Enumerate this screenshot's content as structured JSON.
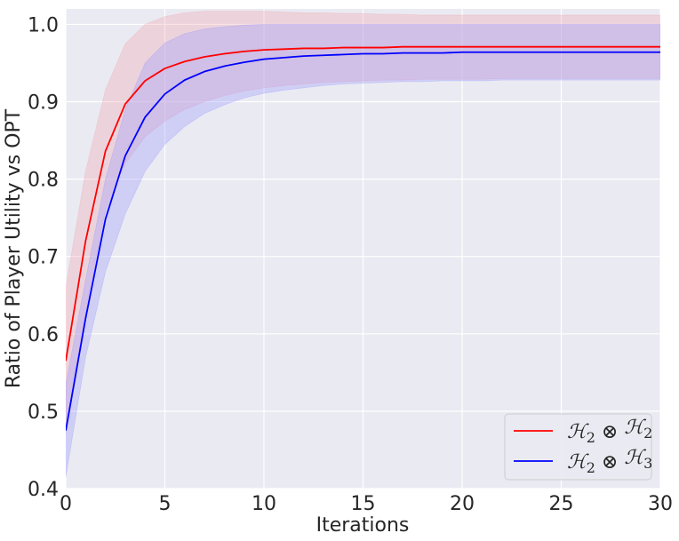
{
  "chart_data": {
    "type": "line",
    "title": "",
    "xlabel": "Iterations",
    "ylabel": "Ratio of Player Utility vs OPT",
    "xlim": [
      0,
      30
    ],
    "ylim": [
      0.4,
      1.02
    ],
    "xticks": [
      0,
      5,
      10,
      15,
      20,
      25,
      30
    ],
    "yticks": [
      0.4,
      0.5,
      0.6,
      0.7,
      0.8,
      0.9,
      1.0
    ],
    "xtick_labels": [
      "0",
      "5",
      "10",
      "15",
      "20",
      "25",
      "30"
    ],
    "ytick_labels": [
      "0.4",
      "0.5",
      "0.6",
      "0.7",
      "0.8",
      "0.9",
      "1.0"
    ],
    "grid": true,
    "background": "#EAEAF2",
    "legend_position": "bottom-right",
    "x": [
      0,
      1,
      2,
      3,
      4,
      5,
      6,
      7,
      8,
      9,
      10,
      11,
      12,
      13,
      14,
      15,
      16,
      17,
      18,
      19,
      20,
      21,
      22,
      23,
      24,
      25,
      26,
      27,
      28,
      29,
      30
    ],
    "series": [
      {
        "legend": {
          "main": "ℋ",
          "sub": "2",
          "op": " ⊗ ",
          "main2": "ℋ",
          "sub2": "2"
        },
        "color": "#FF0000",
        "band_color": "rgba(240,150,160,0.28)",
        "values": [
          0.565,
          0.72,
          0.836,
          0.897,
          0.927,
          0.943,
          0.952,
          0.958,
          0.962,
          0.965,
          0.967,
          0.968,
          0.969,
          0.969,
          0.97,
          0.97,
          0.97,
          0.971,
          0.971,
          0.971,
          0.971,
          0.971,
          0.971,
          0.971,
          0.971,
          0.971,
          0.971,
          0.971,
          0.971,
          0.971,
          0.971
        ],
        "upper": [
          0.66,
          0.81,
          0.915,
          0.975,
          1.0,
          1.01,
          1.015,
          1.017,
          1.017,
          1.017,
          1.017,
          1.016,
          1.015,
          1.015,
          1.014,
          1.014,
          1.013,
          1.013,
          1.012,
          1.012,
          1.012,
          1.012,
          1.012,
          1.012,
          1.012,
          1.012,
          1.012,
          1.012,
          1.012,
          1.012,
          1.012
        ],
        "lower": [
          0.47,
          0.63,
          0.76,
          0.82,
          0.855,
          0.875,
          0.89,
          0.9,
          0.908,
          0.914,
          0.918,
          0.921,
          0.923,
          0.925,
          0.926,
          0.927,
          0.928,
          0.928,
          0.929,
          0.929,
          0.929,
          0.929,
          0.93,
          0.93,
          0.93,
          0.93,
          0.93,
          0.93,
          0.93,
          0.93,
          0.93
        ]
      },
      {
        "legend": {
          "main": "ℋ",
          "sub": "2",
          "op": " ⊗ ",
          "main2": "ℋ",
          "sub2": "3"
        },
        "color": "#0000FF",
        "band_color": "rgba(150,150,255,0.32)",
        "values": [
          0.475,
          0.62,
          0.748,
          0.83,
          0.88,
          0.91,
          0.928,
          0.939,
          0.946,
          0.951,
          0.955,
          0.957,
          0.959,
          0.96,
          0.961,
          0.962,
          0.962,
          0.963,
          0.963,
          0.963,
          0.964,
          0.964,
          0.964,
          0.964,
          0.964,
          0.964,
          0.964,
          0.964,
          0.964,
          0.964,
          0.964
        ],
        "upper": [
          0.535,
          0.67,
          0.8,
          0.89,
          0.95,
          0.976,
          0.988,
          0.994,
          0.997,
          0.999,
          1.0,
          1.0,
          1.0,
          1.0,
          1.0,
          1.0,
          1.0,
          1.0,
          1.0,
          1.0,
          1.0,
          1.0,
          1.0,
          1.0,
          1.0,
          1.0,
          1.0,
          1.0,
          1.0,
          1.0,
          1.0
        ],
        "lower": [
          0.415,
          0.57,
          0.68,
          0.755,
          0.81,
          0.845,
          0.868,
          0.885,
          0.896,
          0.905,
          0.911,
          0.915,
          0.918,
          0.921,
          0.923,
          0.924,
          0.925,
          0.926,
          0.926,
          0.927,
          0.927,
          0.927,
          0.928,
          0.928,
          0.928,
          0.928,
          0.928,
          0.928,
          0.928,
          0.928,
          0.928
        ]
      }
    ]
  }
}
